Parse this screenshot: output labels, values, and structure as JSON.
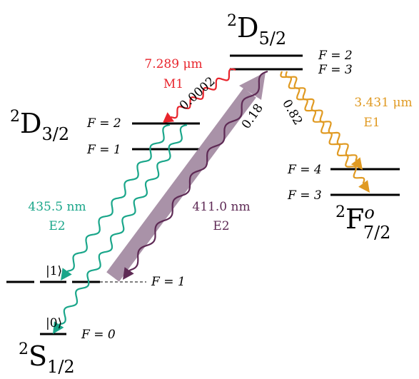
{
  "colors": {
    "level": "#000000",
    "m1": "#e8242c",
    "e1": "#e09a22",
    "e2_decay": "#1aa68a",
    "e2_drive": "#5e2a55",
    "e2_drive_band": "#9b7f99"
  },
  "levels": {
    "d52": {
      "term": "D",
      "multiplicity": "2",
      "j": "5/2",
      "f_upper": "F = 2",
      "f_lower": "F = 3"
    },
    "d32": {
      "term": "D",
      "multiplicity": "2",
      "j": "3/2",
      "f_upper": "F = 2",
      "f_lower": "F = 1"
    },
    "f72": {
      "term": "F",
      "multiplicity": "2",
      "parity": "o",
      "j": "7/2",
      "f_upper": "F = 4",
      "f_lower": "F = 3"
    },
    "s12": {
      "term": "S",
      "multiplicity": "2",
      "j": "1/2",
      "f_upper": "F = 1",
      "f_lower": "F = 0",
      "ket1": "|1⟩",
      "ket0": "|0⟩"
    }
  },
  "transitions": {
    "m1": {
      "wavelength": "7.289 μm",
      "type": "M1",
      "branching": "0.0002"
    },
    "e1": {
      "wavelength": "3.431 μm",
      "type": "E1",
      "branching": "0.82"
    },
    "drive": {
      "wavelength": "411.0 nm",
      "type": "E2",
      "branching": "0.18"
    },
    "decay": {
      "wavelength": "435.5 nm",
      "type": "E2"
    }
  }
}
